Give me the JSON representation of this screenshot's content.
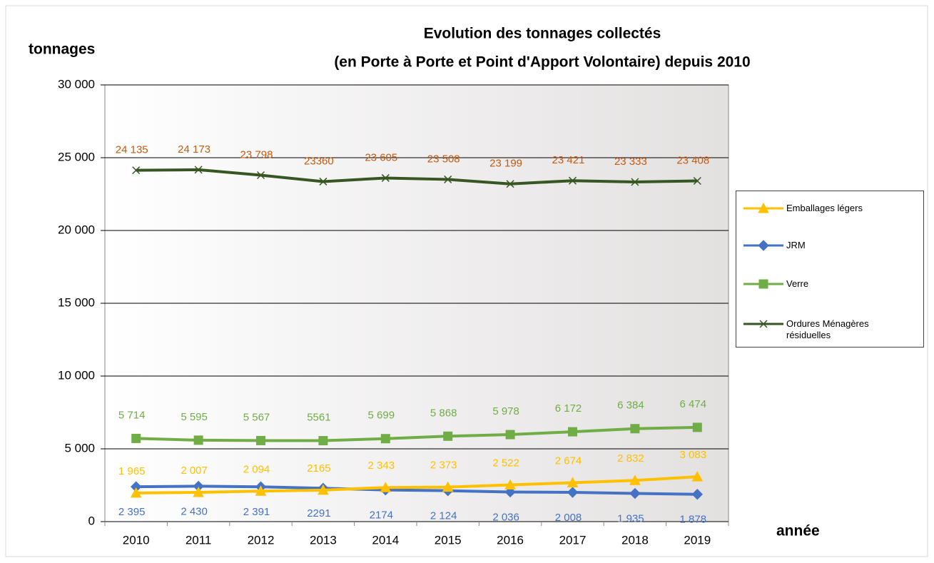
{
  "chart_data": {
    "type": "line",
    "title": [
      "Evolution des tonnages collectés",
      "(en Porte à Porte et Point d'Apport Volontaire) depuis 2010"
    ],
    "y_label": "tonnages",
    "x_label": "année",
    "categories": [
      "2010",
      "2011",
      "2012",
      "2013",
      "2014",
      "2015",
      "2016",
      "2017",
      "2018",
      "2019"
    ],
    "ylim": [
      0,
      30000
    ],
    "yticks": [
      0,
      {
        "value": 5000,
        "label": "5 000"
      },
      {
        "value": 10000,
        "label": "10 000"
      },
      {
        "value": 15000,
        "label": "15 000"
      },
      {
        "value": 20000,
        "label": "20 000"
      },
      {
        "value": 25000,
        "label": "25 000"
      },
      {
        "value": 30000,
        "label": "30 000"
      }
    ],
    "grid": true,
    "legend": "right",
    "series": [
      {
        "name": "Emballages légers",
        "color": "#ffc000",
        "label_color": "#ffc000",
        "marker": "triangle",
        "values": [
          1965,
          2007,
          2094,
          2165,
          2343,
          2373,
          2522,
          2674,
          2832,
          3083
        ],
        "value_labels": [
          "1 965",
          "2 007",
          "2 094",
          "2165",
          "2 343",
          "2 373",
          "2 522",
          "2 674",
          "2 832",
          "3 083"
        ]
      },
      {
        "name": "JRM",
        "color": "#4472c4",
        "label_color": "#4472c4",
        "marker": "diamond",
        "values": [
          2395,
          2430,
          2391,
          2291,
          2174,
          2124,
          2036,
          2008,
          1935,
          1878
        ],
        "value_labels": [
          "2 395",
          "2 430",
          "2 391",
          "2291",
          "2174",
          "2 124",
          "2 036",
          "2 008",
          "1 935",
          "1 878"
        ]
      },
      {
        "name": "Verre",
        "color": "#70ad47",
        "label_color": "#70ad47",
        "marker": "square",
        "values": [
          5714,
          5595,
          5567,
          5561,
          5699,
          5868,
          5978,
          6172,
          6384,
          6474
        ],
        "value_labels": [
          "5 714",
          "5 595",
          "5 567",
          "5561",
          "5 699",
          "5 868",
          "5 978",
          "6 172",
          "6 384",
          "6 474"
        ]
      },
      {
        "name": "Ordures Ménagères résiduelles",
        "color": "#375623",
        "label_color": "#c55a11",
        "marker": "x",
        "values": [
          24135,
          24173,
          23798,
          23360,
          23605,
          23508,
          23199,
          23421,
          23333,
          23408
        ],
        "value_labels": [
          "24 135",
          "24 173",
          "23 798",
          "23360",
          "23 605",
          "23 508",
          "23 199",
          "23 421",
          "23 333",
          "23 408"
        ]
      }
    ]
  }
}
